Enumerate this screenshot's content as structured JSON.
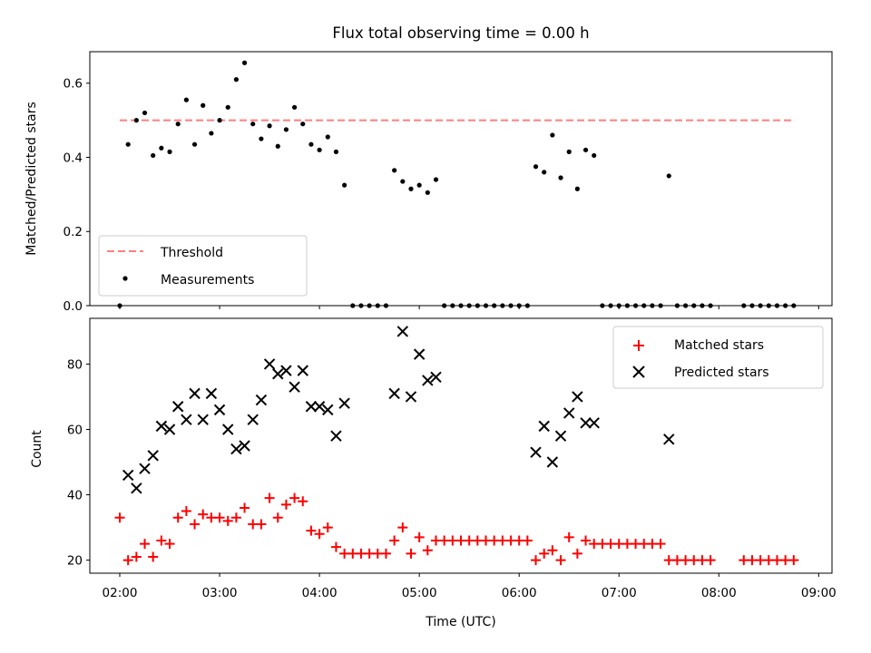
{
  "chart_data": [
    {
      "type": "scatter",
      "title": "Flux total observing time = 0.00 h",
      "xlabel": "",
      "ylabel": "Matched/Predicted stars",
      "ylim": [
        0,
        0.685
      ],
      "yticks": [
        0.0,
        0.2,
        0.4,
        0.6
      ],
      "ytick_labels": [
        "0.0",
        "0.2",
        "0.4",
        "0.6"
      ],
      "legend_position": "lower-left",
      "threshold": {
        "name": "Threshold",
        "value": 0.5,
        "x_start": "02:00",
        "x_end": "08:45",
        "color": "#ff7f7f"
      },
      "series": [
        {
          "name": "Measurements",
          "color": "#000000",
          "points": [
            [
              "02:00",
              0.0
            ],
            [
              "02:05",
              0.435
            ],
            [
              "02:10",
              0.5
            ],
            [
              "02:15",
              0.52
            ],
            [
              "02:20",
              0.405
            ],
            [
              "02:25",
              0.425
            ],
            [
              "02:30",
              0.415
            ],
            [
              "02:35",
              0.49
            ],
            [
              "02:40",
              0.555
            ],
            [
              "02:45",
              0.435
            ],
            [
              "02:50",
              0.54
            ],
            [
              "02:55",
              0.465
            ],
            [
              "03:00",
              0.5
            ],
            [
              "03:05",
              0.535
            ],
            [
              "03:10",
              0.61
            ],
            [
              "03:15",
              0.655
            ],
            [
              "03:20",
              0.49
            ],
            [
              "03:25",
              0.45
            ],
            [
              "03:30",
              0.485
            ],
            [
              "03:35",
              0.43
            ],
            [
              "03:40",
              0.475
            ],
            [
              "03:45",
              0.535
            ],
            [
              "03:50",
              0.49
            ],
            [
              "03:55",
              0.435
            ],
            [
              "04:00",
              0.42
            ],
            [
              "04:05",
              0.455
            ],
            [
              "04:10",
              0.415
            ],
            [
              "04:15",
              0.325
            ],
            [
              "04:20",
              0.0
            ],
            [
              "04:25",
              0.0
            ],
            [
              "04:30",
              0.0
            ],
            [
              "04:35",
              0.0
            ],
            [
              "04:40",
              0.0
            ],
            [
              "04:45",
              0.365
            ],
            [
              "04:50",
              0.335
            ],
            [
              "04:55",
              0.315
            ],
            [
              "05:00",
              0.325
            ],
            [
              "05:05",
              0.305
            ],
            [
              "05:10",
              0.34
            ],
            [
              "05:15",
              0.0
            ],
            [
              "05:20",
              0.0
            ],
            [
              "05:25",
              0.0
            ],
            [
              "05:30",
              0.0
            ],
            [
              "05:35",
              0.0
            ],
            [
              "05:40",
              0.0
            ],
            [
              "05:45",
              0.0
            ],
            [
              "05:50",
              0.0
            ],
            [
              "05:55",
              0.0
            ],
            [
              "06:00",
              0.0
            ],
            [
              "06:05",
              0.0
            ],
            [
              "06:10",
              0.375
            ],
            [
              "06:15",
              0.36
            ],
            [
              "06:20",
              0.46
            ],
            [
              "06:25",
              0.345
            ],
            [
              "06:30",
              0.415
            ],
            [
              "06:35",
              0.315
            ],
            [
              "06:40",
              0.42
            ],
            [
              "06:45",
              0.405
            ],
            [
              "06:50",
              0.0
            ],
            [
              "06:55",
              0.0
            ],
            [
              "07:00",
              0.0
            ],
            [
              "07:05",
              0.0
            ],
            [
              "07:10",
              0.0
            ],
            [
              "07:15",
              0.0
            ],
            [
              "07:20",
              0.0
            ],
            [
              "07:25",
              0.0
            ],
            [
              "07:30",
              0.35
            ],
            [
              "07:35",
              0.0
            ],
            [
              "07:40",
              0.0
            ],
            [
              "07:45",
              0.0
            ],
            [
              "07:50",
              0.0
            ],
            [
              "07:55",
              0.0
            ],
            [
              "08:15",
              0.0
            ],
            [
              "08:20",
              0.0
            ],
            [
              "08:25",
              0.0
            ],
            [
              "08:30",
              0.0
            ],
            [
              "08:35",
              0.0
            ],
            [
              "08:40",
              0.0
            ],
            [
              "08:45",
              0.0
            ]
          ]
        }
      ]
    },
    {
      "type": "scatter",
      "title": "",
      "xlabel": "Time (UTC)",
      "ylabel": "Count",
      "xlim": [
        "01:42",
        "09:08"
      ],
      "ylim": [
        16,
        94
      ],
      "xticks": [
        "02:00",
        "03:00",
        "04:00",
        "05:00",
        "06:00",
        "07:00",
        "08:00",
        "09:00"
      ],
      "yticks": [
        20,
        40,
        60,
        80
      ],
      "legend_position": "upper-right",
      "series": [
        {
          "name": "Matched stars",
          "marker": "plus",
          "color": "#ff0000",
          "points": [
            [
              "02:00",
              33
            ],
            [
              "02:05",
              20
            ],
            [
              "02:10",
              21
            ],
            [
              "02:15",
              25
            ],
            [
              "02:20",
              21
            ],
            [
              "02:25",
              26
            ],
            [
              "02:30",
              25
            ],
            [
              "02:35",
              33
            ],
            [
              "02:40",
              35
            ],
            [
              "02:45",
              31
            ],
            [
              "02:50",
              34
            ],
            [
              "02:55",
              33
            ],
            [
              "03:00",
              33
            ],
            [
              "03:05",
              32
            ],
            [
              "03:10",
              33
            ],
            [
              "03:15",
              36
            ],
            [
              "03:20",
              31
            ],
            [
              "03:25",
              31
            ],
            [
              "03:30",
              39
            ],
            [
              "03:35",
              33
            ],
            [
              "03:40",
              37
            ],
            [
              "03:45",
              39
            ],
            [
              "03:50",
              38
            ],
            [
              "03:55",
              29
            ],
            [
              "04:00",
              28
            ],
            [
              "04:05",
              30
            ],
            [
              "04:10",
              24
            ],
            [
              "04:15",
              22
            ],
            [
              "04:20",
              22
            ],
            [
              "04:25",
              22
            ],
            [
              "04:30",
              22
            ],
            [
              "04:35",
              22
            ],
            [
              "04:40",
              22
            ],
            [
              "04:45",
              26
            ],
            [
              "04:50",
              30
            ],
            [
              "04:55",
              22
            ],
            [
              "05:00",
              27
            ],
            [
              "05:05",
              23
            ],
            [
              "05:10",
              26
            ],
            [
              "05:15",
              26
            ],
            [
              "05:20",
              26
            ],
            [
              "05:25",
              26
            ],
            [
              "05:30",
              26
            ],
            [
              "05:35",
              26
            ],
            [
              "05:40",
              26
            ],
            [
              "05:45",
              26
            ],
            [
              "05:50",
              26
            ],
            [
              "05:55",
              26
            ],
            [
              "06:00",
              26
            ],
            [
              "06:05",
              26
            ],
            [
              "06:10",
              20
            ],
            [
              "06:15",
              22
            ],
            [
              "06:20",
              23
            ],
            [
              "06:25",
              20
            ],
            [
              "06:30",
              27
            ],
            [
              "06:35",
              22
            ],
            [
              "06:40",
              26
            ],
            [
              "06:45",
              25
            ],
            [
              "06:50",
              25
            ],
            [
              "06:55",
              25
            ],
            [
              "07:00",
              25
            ],
            [
              "07:05",
              25
            ],
            [
              "07:10",
              25
            ],
            [
              "07:15",
              25
            ],
            [
              "07:20",
              25
            ],
            [
              "07:25",
              25
            ],
            [
              "07:30",
              20
            ],
            [
              "07:35",
              20
            ],
            [
              "07:40",
              20
            ],
            [
              "07:45",
              20
            ],
            [
              "07:50",
              20
            ],
            [
              "07:55",
              20
            ],
            [
              "08:15",
              20
            ],
            [
              "08:20",
              20
            ],
            [
              "08:25",
              20
            ],
            [
              "08:30",
              20
            ],
            [
              "08:35",
              20
            ],
            [
              "08:40",
              20
            ],
            [
              "08:45",
              20
            ]
          ]
        },
        {
          "name": "Predicted stars",
          "marker": "x",
          "color": "#000000",
          "points": [
            [
              "02:05",
              46
            ],
            [
              "02:10",
              42
            ],
            [
              "02:15",
              48
            ],
            [
              "02:20",
              52
            ],
            [
              "02:25",
              61
            ],
            [
              "02:30",
              60
            ],
            [
              "02:35",
              67
            ],
            [
              "02:40",
              63
            ],
            [
              "02:45",
              71
            ],
            [
              "02:50",
              63
            ],
            [
              "02:55",
              71
            ],
            [
              "03:00",
              66
            ],
            [
              "03:05",
              60
            ],
            [
              "03:10",
              54
            ],
            [
              "03:15",
              55
            ],
            [
              "03:20",
              63
            ],
            [
              "03:25",
              69
            ],
            [
              "03:30",
              80
            ],
            [
              "03:35",
              77
            ],
            [
              "03:40",
              78
            ],
            [
              "03:45",
              73
            ],
            [
              "03:50",
              78
            ],
            [
              "03:55",
              67
            ],
            [
              "04:00",
              67
            ],
            [
              "04:05",
              66
            ],
            [
              "04:10",
              58
            ],
            [
              "04:15",
              68
            ],
            [
              "04:45",
              71
            ],
            [
              "04:50",
              90
            ],
            [
              "04:55",
              70
            ],
            [
              "05:00",
              83
            ],
            [
              "05:05",
              75
            ],
            [
              "05:10",
              76
            ],
            [
              "06:10",
              53
            ],
            [
              "06:15",
              61
            ],
            [
              "06:20",
              50
            ],
            [
              "06:25",
              58
            ],
            [
              "06:30",
              65
            ],
            [
              "06:35",
              70
            ],
            [
              "06:40",
              62
            ],
            [
              "06:45",
              62
            ],
            [
              "07:30",
              57
            ]
          ]
        }
      ]
    }
  ]
}
